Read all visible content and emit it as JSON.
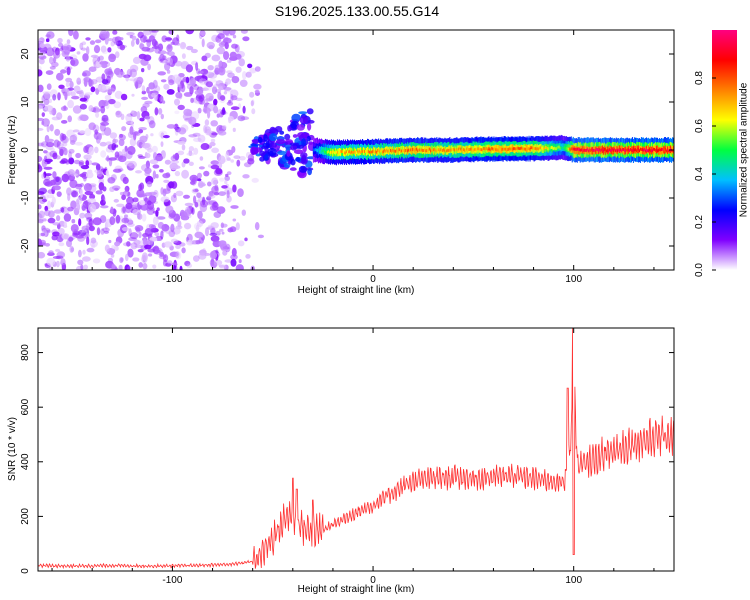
{
  "title": "S196.2025.133.00.55.G14",
  "chart_data": [
    {
      "type": "heatmap",
      "xlabel": "Height of straight line (km)",
      "ylabel": "Frequency (Hz)",
      "xlim": [
        -167,
        150
      ],
      "ylim": [
        -25,
        25
      ],
      "x_ticks": [
        -100,
        0,
        100
      ],
      "y_ticks": [
        -20,
        -10,
        0,
        10,
        20
      ],
      "colorbar": {
        "label": "Normalized spectral amplitude",
        "ticks": [
          "0.0",
          "0.2",
          "0.4",
          "0.6",
          "0.8"
        ],
        "range": [
          0,
          1
        ],
        "colors": [
          "#ffffff",
          "#8000ff",
          "#0000ff",
          "#00c0ff",
          "#00ff40",
          "#ffff00",
          "#ff8000",
          "#ff0000",
          "#ff0080"
        ]
      },
      "ridge": {
        "x": [
          -30,
          -20,
          0,
          20,
          40,
          60,
          80,
          95,
          100,
          120,
          150
        ],
        "frequency": [
          0,
          -0.5,
          -0.3,
          0,
          0,
          0.2,
          0.3,
          0.5,
          0,
          0,
          0
        ],
        "amplitude": [
          0.3,
          0.7,
          0.75,
          0.8,
          0.75,
          0.8,
          0.8,
          0.5,
          0.95,
          0.95,
          0.95
        ]
      },
      "noise_region_x": [
        -167,
        -60
      ],
      "scatter_region_x": [
        -60,
        -30
      ]
    },
    {
      "type": "line",
      "xlabel": "Height of straight line (km)",
      "ylabel": "SNR (10 * v/v)",
      "xlim": [
        -167,
        150
      ],
      "ylim": [
        0,
        890
      ],
      "x_ticks": [
        -100,
        0,
        100
      ],
      "y_ticks": [
        0,
        200,
        400,
        600,
        800
      ],
      "color": "#ff3030",
      "series": [
        {
          "x": [
            -167,
            -150,
            -130,
            -110,
            -90,
            -70,
            -60,
            -55,
            -50,
            -45,
            -42,
            -40,
            -38,
            -35,
            -30,
            -25,
            -20,
            -15,
            -10,
            -5,
            0,
            5,
            10,
            15,
            20,
            25,
            30,
            40,
            50,
            60,
            70,
            80,
            90,
            95,
            98,
            100,
            102,
            105,
            110,
            120,
            130,
            140,
            150
          ],
          "y": [
            20,
            18,
            20,
            18,
            20,
            25,
            35,
            70,
            120,
            180,
            210,
            200,
            180,
            160,
            140,
            150,
            170,
            190,
            210,
            225,
            240,
            265,
            290,
            310,
            330,
            335,
            340,
            345,
            340,
            345,
            350,
            340,
            330,
            320,
            420,
            700,
            380,
            390,
            410,
            440,
            470,
            490,
            500
          ]
        }
      ],
      "peaks": {
        "x": [
          -40,
          -38,
          -30,
          97,
          99.5,
          100
        ],
        "y": [
          340,
          300,
          260,
          670,
          890,
          60
        ]
      }
    }
  ]
}
